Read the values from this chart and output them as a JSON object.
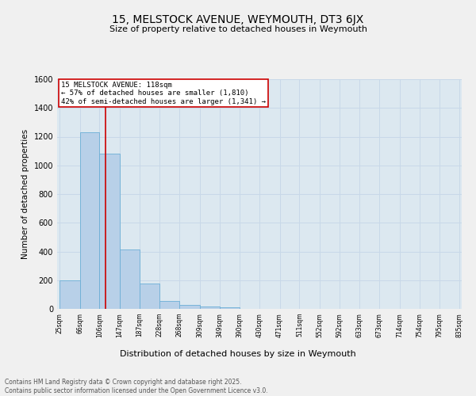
{
  "title": "15, MELSTOCK AVENUE, WEYMOUTH, DT3 6JX",
  "subtitle": "Size of property relative to detached houses in Weymouth",
  "xlabel": "Distribution of detached houses by size in Weymouth",
  "ylabel": "Number of detached properties",
  "bar_values": [
    200,
    1230,
    1080,
    415,
    175,
    55,
    25,
    15,
    10,
    0,
    0,
    0,
    0,
    0,
    0,
    0,
    0,
    0,
    0,
    0
  ],
  "bin_edges": [
    25,
    66,
    106,
    147,
    187,
    228,
    268,
    309,
    349,
    390,
    430,
    471,
    511,
    552,
    592,
    633,
    673,
    714,
    754,
    795,
    835
  ],
  "tick_labels": [
    "25sqm",
    "66sqm",
    "106sqm",
    "147sqm",
    "187sqm",
    "228sqm",
    "268sqm",
    "309sqm",
    "349sqm",
    "390sqm",
    "430sqm",
    "471sqm",
    "511sqm",
    "552sqm",
    "592sqm",
    "633sqm",
    "673sqm",
    "714sqm",
    "754sqm",
    "795sqm",
    "835sqm"
  ],
  "bar_color": "#b8d0e8",
  "bar_edge_color": "#6baed6",
  "red_line_x": 118,
  "annotation_title": "15 MELSTOCK AVENUE: 118sqm",
  "annotation_line1": "← 57% of detached houses are smaller (1,810)",
  "annotation_line2": "42% of semi-detached houses are larger (1,341) →",
  "annotation_box_color": "#ffffff",
  "annotation_border_color": "#cc0000",
  "red_line_color": "#cc0000",
  "ylim": [
    0,
    1600
  ],
  "yticks": [
    0,
    200,
    400,
    600,
    800,
    1000,
    1200,
    1400,
    1600
  ],
  "grid_color": "#c8d8e8",
  "bg_color": "#dce8f0",
  "fig_bg_color": "#f0f0f0",
  "footer_line1": "Contains HM Land Registry data © Crown copyright and database right 2025.",
  "footer_line2": "Contains public sector information licensed under the Open Government Licence v3.0."
}
